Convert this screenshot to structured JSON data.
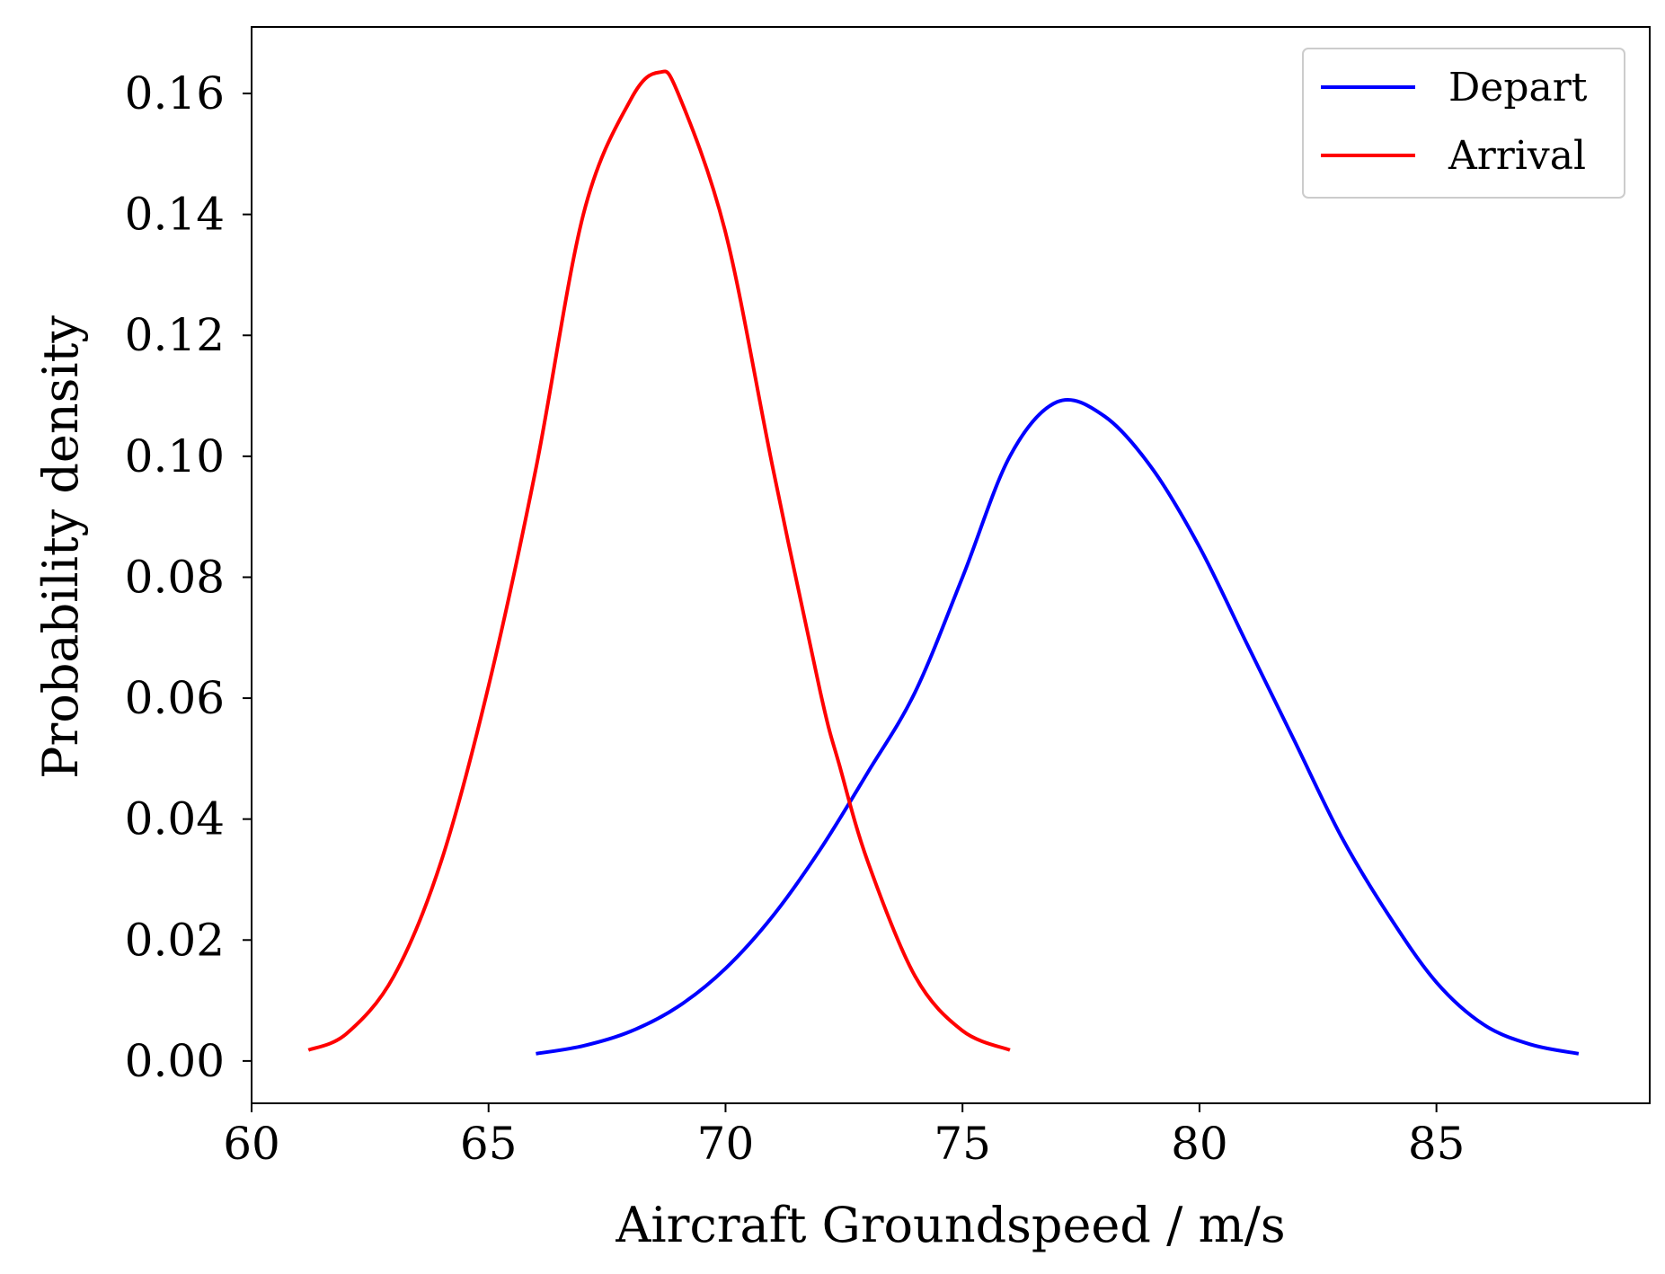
{
  "chart_data": {
    "type": "line",
    "title": "",
    "xlabel": "Aircraft Groundspeed / m/s",
    "ylabel": "Probability density",
    "xlim": [
      60,
      89.5
    ],
    "ylim": [
      -0.007,
      0.171
    ],
    "x_ticks": [
      60,
      65,
      70,
      75,
      80,
      85
    ],
    "x_tick_labels": [
      "60",
      "65",
      "70",
      "75",
      "80",
      "85"
    ],
    "y_ticks": [
      0.0,
      0.02,
      0.04,
      0.06,
      0.08,
      0.1,
      0.12,
      0.14,
      0.16
    ],
    "y_tick_labels": [
      "0.00",
      "0.02",
      "0.04",
      "0.06",
      "0.08",
      "0.10",
      "0.12",
      "0.14",
      "0.16"
    ],
    "grid": false,
    "legend_position": "top-right",
    "series": [
      {
        "name": "Depart",
        "color": "#0000ff",
        "x": [
          66,
          67,
          68,
          69,
          70,
          71,
          72,
          73,
          74,
          75,
          76,
          77,
          78,
          79,
          80,
          81,
          82,
          83,
          84,
          85,
          86,
          87,
          88
        ],
        "y": [
          0.0012,
          0.0025,
          0.0049,
          0.009,
          0.0153,
          0.024,
          0.035,
          0.0477,
          0.061,
          0.08,
          0.1,
          0.109,
          0.1066,
          0.098,
          0.085,
          0.069,
          0.053,
          0.037,
          0.024,
          0.013,
          0.006,
          0.0027,
          0.0012
        ]
      },
      {
        "name": "Arrival",
        "color": "#ff0000",
        "x": [
          61.2,
          62,
          63,
          64,
          65,
          66,
          67,
          68,
          68.6,
          69,
          70,
          71,
          72,
          72.4,
          73,
          74,
          75,
          76
        ],
        "y": [
          0.0018,
          0.0045,
          0.014,
          0.033,
          0.062,
          0.098,
          0.14,
          0.159,
          0.1635,
          0.16,
          0.137,
          0.098,
          0.061,
          0.049,
          0.033,
          0.014,
          0.005,
          0.0018
        ]
      }
    ]
  }
}
